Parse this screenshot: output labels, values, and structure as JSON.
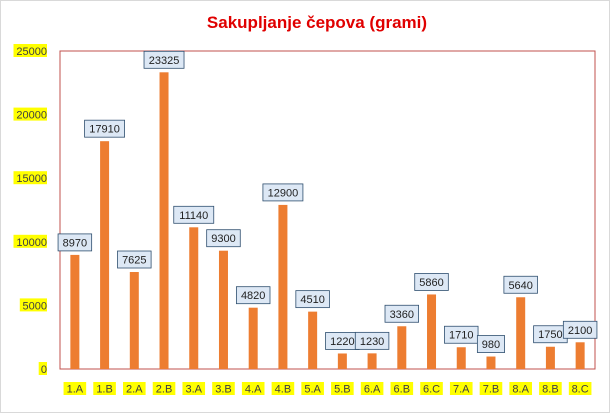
{
  "chart_data": {
    "type": "bar",
    "title": "Sakupljanje čepova (grami)",
    "xlabel": "",
    "ylabel": "",
    "ylim": [
      0,
      25000
    ],
    "yticks": [
      0,
      5000,
      10000,
      15000,
      20000,
      25000
    ],
    "grid": false,
    "legend": "none",
    "categories": [
      "1.A",
      "1.B",
      "2.A",
      "2.B",
      "3.A",
      "3.B",
      "4.A",
      "4.B",
      "5.A",
      "5.B",
      "6.A",
      "6.B",
      "6.C",
      "7.A",
      "7.B",
      "8.A",
      "8.B",
      "8.C"
    ],
    "values": [
      8970,
      17910,
      7625,
      23325,
      11140,
      9300,
      4820,
      12900,
      4510,
      1220,
      1230,
      3360,
      5860,
      1710,
      980,
      5640,
      1750,
      2100
    ]
  },
  "colors": {
    "bar": "#ed7d31",
    "title": "#e00000",
    "label_highlight": "#ffff00",
    "data_label_fill": "#dde8f5",
    "data_label_border": "#2f4f6f",
    "plot_border": "#c0504d"
  }
}
